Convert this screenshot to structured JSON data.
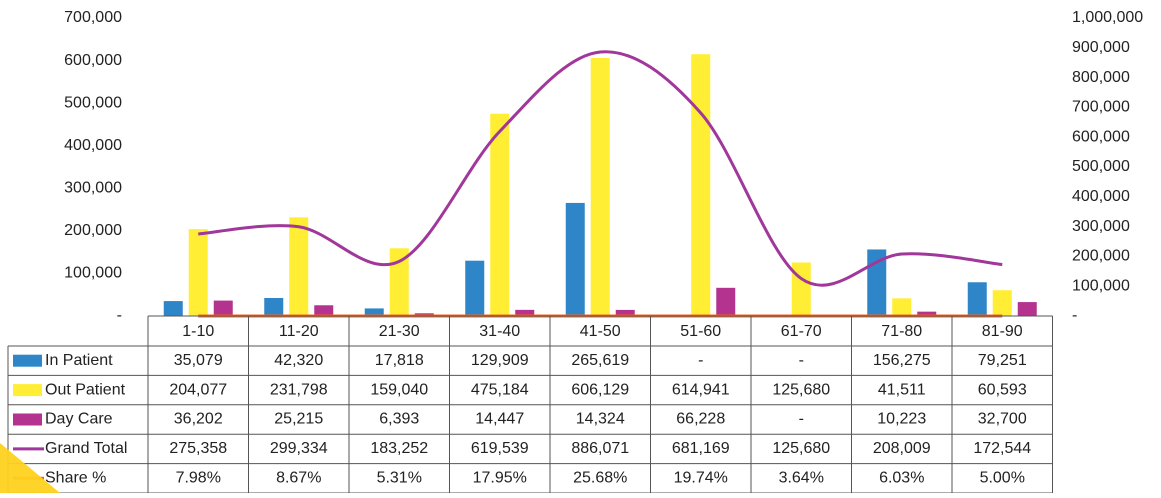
{
  "chart_data": {
    "type": "bar",
    "categories": [
      "1-10",
      "11-20",
      "21-30",
      "31-40",
      "41-50",
      "51-60",
      "61-70",
      "71-80",
      "81-90"
    ],
    "series": [
      {
        "name": "In Patient",
        "color": "#2e86c8",
        "values": [
          35079,
          42320,
          17818,
          129909,
          265619,
          null,
          null,
          156275,
          79251
        ],
        "labels": [
          "35,079",
          "42,320",
          "17,818",
          "129,909",
          "265,619",
          "-",
          "-",
          "156,275",
          "79,251"
        ]
      },
      {
        "name": "Out Patient",
        "color": "#ffee33",
        "values": [
          204077,
          231798,
          159040,
          475184,
          606129,
          614941,
          125680,
          41511,
          60593
        ],
        "labels": [
          "204,077",
          "231,798",
          "159,040",
          "475,184",
          "606,129",
          "614,941",
          "125,680",
          "41,511",
          "60,593"
        ]
      },
      {
        "name": "Day Care",
        "color": "#b3338f",
        "values": [
          36202,
          25215,
          6393,
          14447,
          14324,
          66228,
          null,
          10223,
          32700
        ],
        "labels": [
          "36,202",
          "25,215",
          "6,393",
          "14,447",
          "14,324",
          "66,228",
          "-",
          "10,223",
          "32,700"
        ]
      },
      {
        "name": "Grand Total",
        "type": "line",
        "axis": "right",
        "color": "#a1379a",
        "values": [
          275358,
          299334,
          183252,
          619539,
          886071,
          681169,
          125680,
          208009,
          172544
        ],
        "labels": [
          "275,358",
          "299,334",
          "183,252",
          "619,539",
          "886,071",
          "681,169",
          "125,680",
          "208,009",
          "172,544"
        ]
      },
      {
        "name": "Share %",
        "type": "line",
        "axis": "right",
        "color": "#f26522",
        "values": [
          7.98,
          8.67,
          5.31,
          17.95,
          25.68,
          19.74,
          3.64,
          6.03,
          5.0
        ],
        "labels": [
          "7.98%",
          "8.67%",
          "5.31%",
          "17.95%",
          "25.68%",
          "19.74%",
          "3.64%",
          "6.03%",
          "5.00%"
        ]
      }
    ],
    "y_left": {
      "ylim": [
        0,
        700000
      ],
      "ticks": [
        0,
        100000,
        200000,
        300000,
        400000,
        500000,
        600000,
        700000
      ],
      "tick_labels": [
        "-",
        "100,000",
        "200,000",
        "300,000",
        "400,000",
        "500,000",
        "600,000",
        "700,000"
      ]
    },
    "y_right": {
      "ylim": [
        0,
        1000000
      ],
      "ticks": [
        0,
        100000,
        200000,
        300000,
        400000,
        500000,
        600000,
        700000,
        800000,
        900000,
        1000000
      ],
      "tick_labels": [
        "-",
        "100,000",
        "200,000",
        "300,000",
        "400,000",
        "500,000",
        "600,000",
        "700,000",
        "800,000",
        "900,000",
        "1,000,000"
      ]
    },
    "grid": false,
    "legend": "data-table",
    "title": "",
    "xlabel": "",
    "ylabel": ""
  }
}
